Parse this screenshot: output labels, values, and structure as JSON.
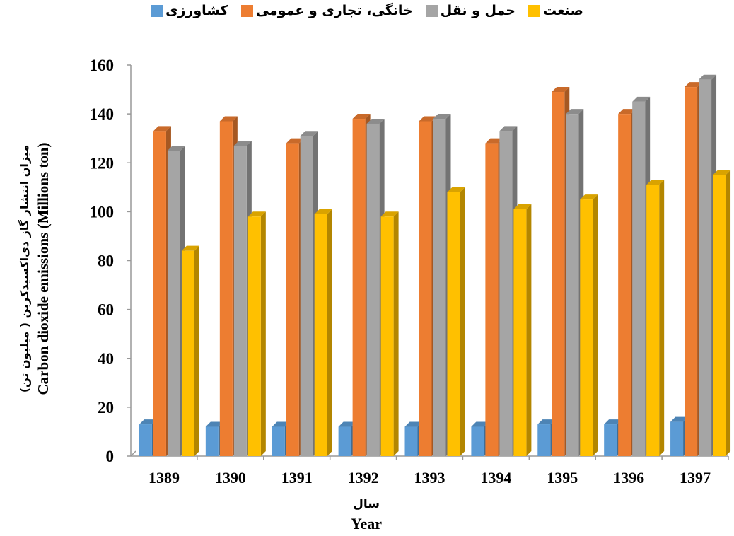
{
  "chart_data": {
    "type": "bar3d",
    "categories": [
      "1389",
      "1390",
      "1391",
      "1392",
      "1393",
      "1394",
      "1395",
      "1396",
      "1397"
    ],
    "series": [
      {
        "name": "کشاورزی",
        "color": "#5b9bd5",
        "values": [
          13,
          12,
          12,
          12,
          12,
          12,
          13,
          13,
          14
        ]
      },
      {
        "name": "خانگی، تجاری و عمومی",
        "color": "#ed7d31",
        "values": [
          133,
          137,
          128,
          138,
          137,
          128,
          149,
          140,
          151
        ]
      },
      {
        "name": "حمل و نقل",
        "color": "#a5a5a5",
        "values": [
          125,
          127,
          131,
          136,
          138,
          133,
          140,
          145,
          154
        ]
      },
      {
        "name": "صنعت",
        "color": "#ffc000",
        "values": [
          84,
          98,
          99,
          98,
          108,
          101,
          105,
          111,
          115
        ]
      }
    ],
    "ylim": [
      0,
      160
    ],
    "yticks": [
      0,
      20,
      40,
      60,
      80,
      100,
      120,
      140,
      160
    ],
    "xlabel": [
      "سال",
      "Year"
    ],
    "ylabel": [
      "میزان انتشار گاز دی‌اکسیدکربن ( میلیون تن)",
      "Carbon dioxide emissions (Millions ton)"
    ]
  }
}
